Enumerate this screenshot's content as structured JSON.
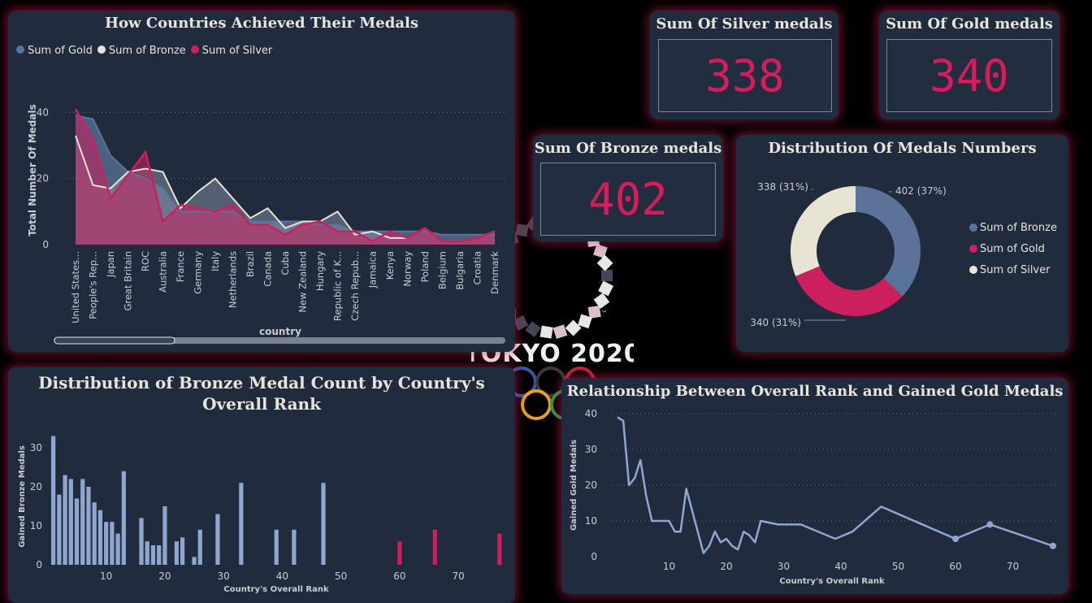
{
  "colors": {
    "gold": "#5b7299",
    "bronze": "#e8e4d4",
    "silver": "#cc1f5d",
    "line_blue": "#8fa7cf",
    "accent": "#d81b5a"
  },
  "logo": {
    "text": "TOKYO 2020",
    "tm": "™"
  },
  "card_silver": {
    "title": "Sum Of Silver medals",
    "value": "338"
  },
  "card_gold": {
    "title": "Sum Of Gold medals",
    "value": "340"
  },
  "card_bronze": {
    "title": "Sum Of Bronze medals",
    "value": "402"
  },
  "area": {
    "title": "How Countries Achieved Their Medals"
  },
  "donut": {
    "title": "Distribution Of Medals Numbers"
  },
  "bars": {
    "title": "Distribution of Bronze Medal Count by Country's Overall Rank"
  },
  "rankline": {
    "title": "Relationship Between Overall Rank and Gained Gold Medals"
  },
  "chart_data": [
    {
      "type": "area",
      "title": "How Countries Achieved Their Medals",
      "xlabel": "country",
      "ylabel": "Total Number Of Medals",
      "ylim": [
        0,
        45
      ],
      "yticks": [
        0,
        20,
        40
      ],
      "legend": "top-left",
      "categories": [
        "United States...",
        "People's Rep...",
        "Japan",
        "Great Britain",
        "ROC",
        "Australia",
        "France",
        "Germany",
        "Italy",
        "Netherlands",
        "Brazil",
        "Canada",
        "Cuba",
        "New Zealand",
        "Hungary",
        "Republic of K...",
        "Czech Repub...",
        "Jamaica",
        "Kenya",
        "Norway",
        "Poland",
        "Belgium",
        "Bulgaria",
        "Croatia",
        "Denmark"
      ],
      "series": [
        {
          "name": "Sum of Gold",
          "values": [
            39,
            38,
            27,
            22,
            20,
            17,
            10,
            10,
            10,
            10,
            7,
            7,
            7,
            7,
            6,
            6,
            4,
            4,
            4,
            4,
            4,
            3,
            3,
            3,
            3
          ]
        },
        {
          "name": "Sum of Bronze",
          "values": [
            33,
            18,
            17,
            22,
            23,
            22,
            11,
            16,
            20,
            14,
            8,
            11,
            5,
            7,
            7,
            10,
            3,
            4,
            2,
            2,
            5,
            1,
            1,
            2,
            4
          ]
        },
        {
          "name": "Sum of Silver",
          "values": [
            41,
            32,
            14,
            21,
            28,
            7,
            12,
            11,
            10,
            12,
            6,
            6,
            3,
            6,
            7,
            4,
            4,
            1,
            4,
            2,
            5,
            1,
            1,
            2,
            4
          ]
        }
      ]
    },
    {
      "type": "pie",
      "title": "Distribution Of Medals Numbers",
      "legend": "right",
      "series": [
        {
          "name": "Sum of Bronze",
          "value": 402,
          "label": "402 (37%)"
        },
        {
          "name": "Sum of Gold",
          "value": 340,
          "label": "340 (31%)"
        },
        {
          "name": "Sum of Silver",
          "value": 338,
          "label": "338 (31%)"
        }
      ]
    },
    {
      "type": "bar",
      "title": "Distribution of Bronze Medal Count by Country's Overall Rank",
      "xlabel": "Country's Overall Rank",
      "ylabel": "Gained Bronze Medals",
      "xlim": [
        0,
        78
      ],
      "ylim": [
        0,
        35
      ],
      "xticks": [
        10,
        20,
        30,
        40,
        50,
        60,
        70
      ],
      "yticks": [
        0,
        10,
        20,
        30
      ],
      "x": [
        1,
        2,
        3,
        4,
        5,
        6,
        7,
        8,
        9,
        10,
        11,
        12,
        13,
        16,
        17,
        18,
        19,
        20,
        22,
        23,
        25,
        26,
        29,
        33,
        39,
        42,
        47,
        60,
        66,
        77
      ],
      "values": [
        33,
        18,
        23,
        22,
        17,
        22,
        20,
        16,
        14,
        11,
        11,
        8,
        24,
        12,
        6,
        5,
        5,
        15,
        6,
        7,
        2,
        9,
        13,
        21,
        9,
        9,
        21,
        6,
        9,
        8
      ],
      "highlight_from_rank": 60
    },
    {
      "type": "line",
      "title": "Relationship Between Overall Rank and Gained Gold Medals",
      "xlabel": "Country's Overall Rank",
      "ylabel": "Gained Gold Medals",
      "xlim": [
        0,
        78
      ],
      "ylim": [
        0,
        40
      ],
      "xticks": [
        10,
        20,
        30,
        40,
        50,
        60,
        70
      ],
      "yticks": [
        0,
        10,
        20,
        30,
        40
      ],
      "x": [
        1,
        2,
        3,
        4,
        5,
        6,
        7,
        8,
        9,
        10,
        11,
        12,
        13,
        15,
        16,
        17,
        18,
        19,
        20,
        21,
        22,
        23,
        24,
        25,
        26,
        29,
        33,
        39,
        42,
        47,
        60,
        66,
        77
      ],
      "y": [
        39,
        38,
        20,
        22,
        27,
        17,
        10,
        10,
        10,
        10,
        7,
        7,
        19,
        7,
        1,
        3,
        7,
        4,
        5,
        3,
        2,
        7,
        6,
        4,
        10,
        9,
        9,
        5,
        7,
        14,
        5,
        9,
        3
      ],
      "markers_at_x": [
        60,
        66,
        77
      ]
    }
  ]
}
